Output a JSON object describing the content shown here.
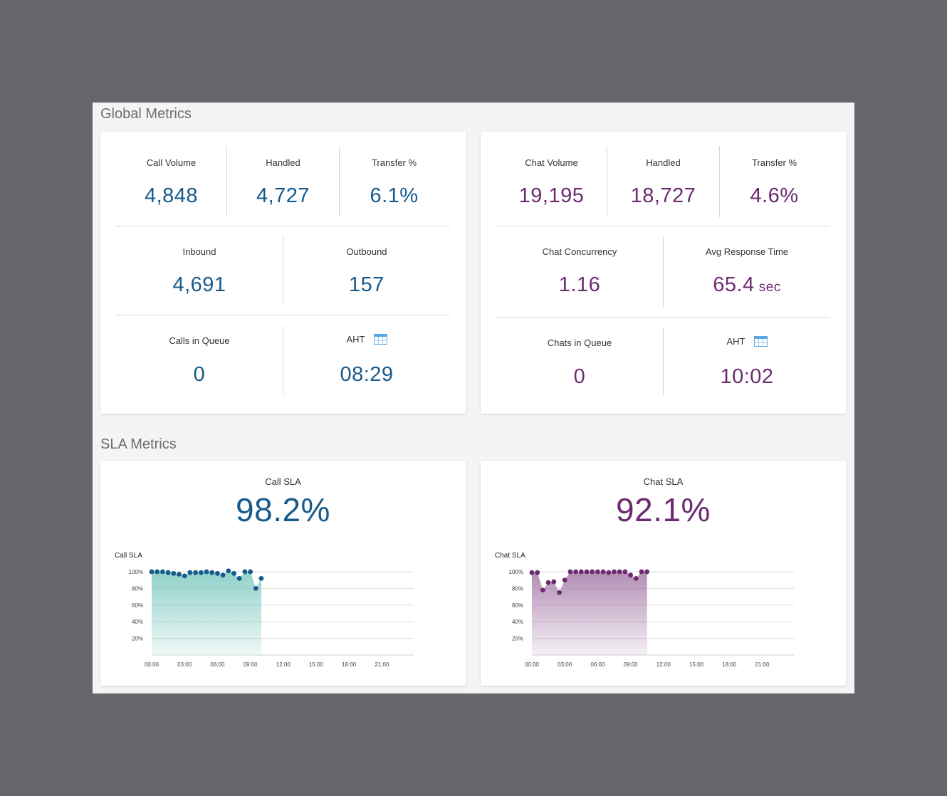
{
  "sections": {
    "global_title": "Global Metrics",
    "sla_title": "SLA Metrics"
  },
  "call": {
    "row1": [
      {
        "label": "Call Volume",
        "value": "4,848"
      },
      {
        "label": "Handled",
        "value": "4,727"
      },
      {
        "label": "Transfer %",
        "value": "6.1%"
      }
    ],
    "row2": [
      {
        "label": "Inbound",
        "value": "4,691"
      },
      {
        "label": "Outbound",
        "value": "157"
      }
    ],
    "row3": [
      {
        "label": "Calls in Queue",
        "value": "0"
      },
      {
        "label": "AHT",
        "value": "08:29",
        "icon": "calendar-icon"
      }
    ]
  },
  "chat": {
    "row1": [
      {
        "label": "Chat Volume",
        "value": "19,195"
      },
      {
        "label": "Handled",
        "value": "18,727"
      },
      {
        "label": "Transfer %",
        "value": "4.6%"
      }
    ],
    "row2": [
      {
        "label": "Chat Concurrency",
        "value": "1.16"
      },
      {
        "label": "Avg Response Time",
        "value": "65.4",
        "unit": "sec"
      }
    ],
    "row3": [
      {
        "label": "Chats in Queue",
        "value": "0"
      },
      {
        "label": "AHT",
        "value": "10:02",
        "icon": "calendar-icon"
      }
    ]
  },
  "sla": {
    "call": {
      "label": "Call SLA",
      "value": "98.2%"
    },
    "chat": {
      "label": "Chat SLA",
      "value": "92.1%"
    }
  },
  "colors": {
    "call_accent": "#175a8c",
    "chat_accent": "#6c2b70",
    "call_fill": "#7ec8c0",
    "chat_fill": "#a57ba8"
  },
  "chart_data": [
    {
      "type": "area",
      "title": "Call SLA",
      "x_unit": "hour",
      "xlim": [
        0,
        24
      ],
      "xticks": [
        0,
        3,
        6,
        9,
        12,
        15,
        18,
        21
      ],
      "xtick_labels": [
        "00:00",
        "03:00",
        "06:00",
        "09:00",
        "12:00",
        "15:00",
        "18:00",
        "21:00"
      ],
      "ylim": [
        0,
        100
      ],
      "yticks": [
        20,
        40,
        60,
        80,
        100
      ],
      "ytick_labels": [
        "20%",
        "40%",
        "60%",
        "80%",
        "100%"
      ],
      "x": [
        0,
        0.5,
        1,
        1.5,
        2,
        2.5,
        3,
        3.5,
        4,
        4.5,
        5,
        5.5,
        6,
        6.5,
        7,
        7.5,
        8,
        8.5,
        9,
        9.5,
        10
      ],
      "values": [
        100,
        100,
        100,
        99,
        98,
        97,
        95,
        99,
        99,
        99,
        100,
        99,
        98,
        96,
        101,
        98,
        92,
        100,
        100,
        80,
        92
      ],
      "color": "#175a8c",
      "fill": "#7ec8c0"
    },
    {
      "type": "area",
      "title": "Chat SLA",
      "x_unit": "hour",
      "xlim": [
        0,
        24
      ],
      "xticks": [
        0,
        3,
        6,
        9,
        12,
        15,
        18,
        21
      ],
      "xtick_labels": [
        "00:00",
        "03:00",
        "06:00",
        "09:00",
        "12:00",
        "15:00",
        "18:00",
        "21:00"
      ],
      "ylim": [
        0,
        100
      ],
      "yticks": [
        20,
        40,
        60,
        80,
        100
      ],
      "ytick_labels": [
        "20%",
        "40%",
        "60%",
        "80%",
        "100%"
      ],
      "x": [
        0,
        0.5,
        1,
        1.5,
        2,
        2.5,
        3,
        3.5,
        4,
        4.5,
        5,
        5.5,
        6,
        6.5,
        7,
        7.5,
        8,
        8.5,
        9,
        9.5,
        10,
        10.5
      ],
      "values": [
        99,
        99,
        78,
        87,
        88,
        75,
        90,
        100,
        100,
        100,
        100,
        100,
        100,
        100,
        99,
        100,
        100,
        100,
        96,
        92,
        100,
        100
      ],
      "color": "#6c2b70",
      "fill": "#a57ba8"
    }
  ]
}
